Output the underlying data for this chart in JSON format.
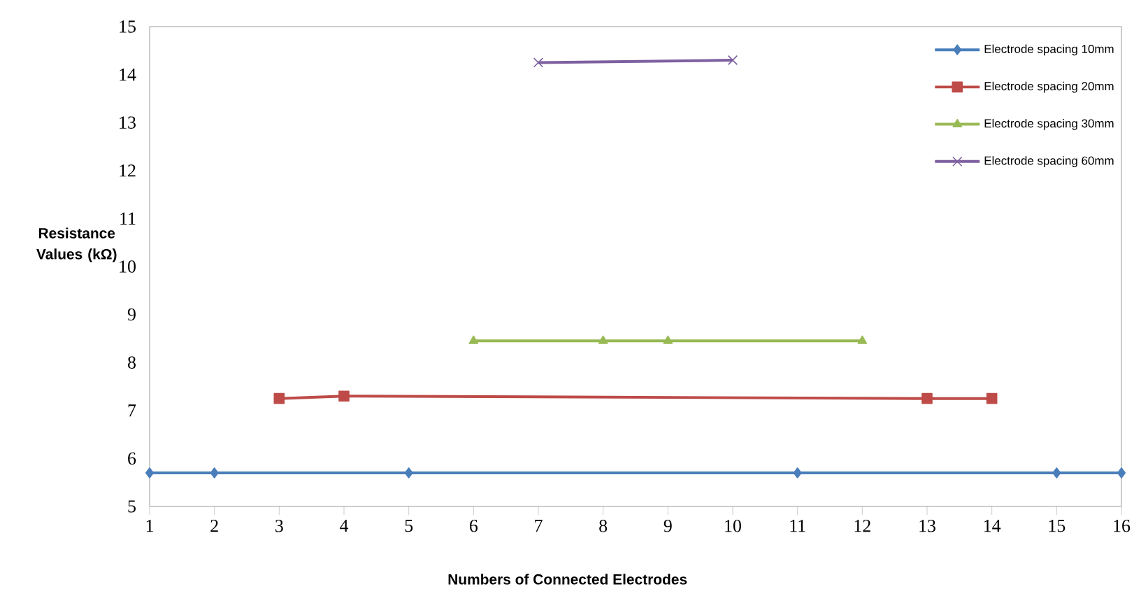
{
  "chart_data": {
    "type": "line",
    "xlabel": "Numbers of Connected Electrodes",
    "ylabel": "Resistance Values (kΩ)",
    "xlim": [
      1,
      16
    ],
    "xticks": [
      1,
      2,
      3,
      4,
      5,
      6,
      7,
      8,
      9,
      10,
      11,
      12,
      13,
      14,
      15,
      16
    ],
    "ylim": [
      5,
      15
    ],
    "yticks": [
      5,
      6,
      7,
      8,
      9,
      10,
      11,
      12,
      13,
      14,
      15
    ],
    "legend": "top right",
    "grid": false,
    "series": [
      {
        "name": "Electrode spacing 10mm",
        "color": "#4a7ebb",
        "marker": "diamond",
        "x": [
          1,
          2,
          5,
          11,
          15,
          16
        ],
        "values": [
          5.7,
          5.7,
          5.7,
          5.7,
          5.7,
          5.7
        ]
      },
      {
        "name": "Electrode spacing 20mm",
        "color": "#be4b48",
        "marker": "square",
        "x": [
          3,
          4,
          13,
          14
        ],
        "values": [
          7.25,
          7.3,
          7.25,
          7.25
        ]
      },
      {
        "name": "Electrode spacing 30mm",
        "color": "#98b954",
        "marker": "triangle",
        "x": [
          6,
          8,
          9,
          12
        ],
        "values": [
          8.45,
          8.45,
          8.45,
          8.45
        ]
      },
      {
        "name": "Electrode spacing 60mm",
        "color": "#7d60a0",
        "marker": "cross",
        "x": [
          7,
          10
        ],
        "values": [
          14.25,
          14.3
        ]
      }
    ]
  }
}
